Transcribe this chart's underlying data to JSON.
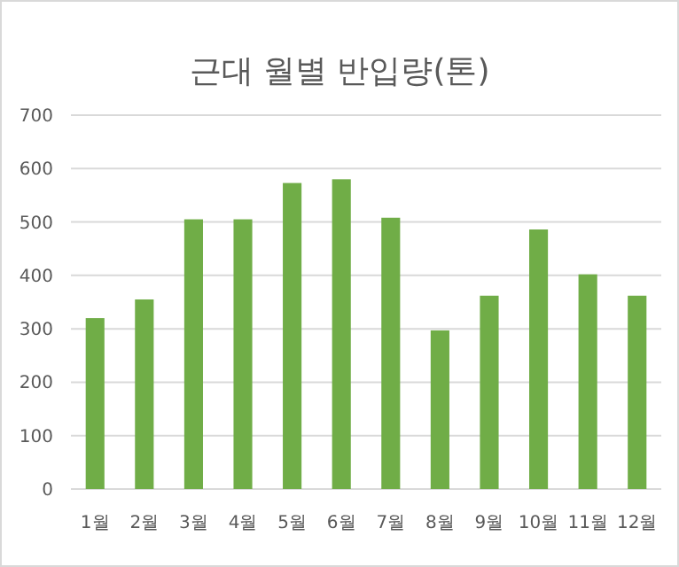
{
  "chart_data": {
    "type": "bar",
    "title": "근대 월별 반입량(톤)",
    "categories": [
      "1월",
      "2월",
      "3월",
      "4월",
      "5월",
      "6월",
      "7월",
      "8월",
      "9월",
      "10월",
      "11월",
      "12월"
    ],
    "values": [
      320,
      355,
      505,
      505,
      573,
      580,
      508,
      297,
      362,
      486,
      402,
      362
    ],
    "color": "#70ad47",
    "ylim": [
      0,
      700
    ],
    "yticks": [
      0,
      100,
      200,
      300,
      400,
      500,
      600,
      700
    ],
    "grid": "y"
  }
}
